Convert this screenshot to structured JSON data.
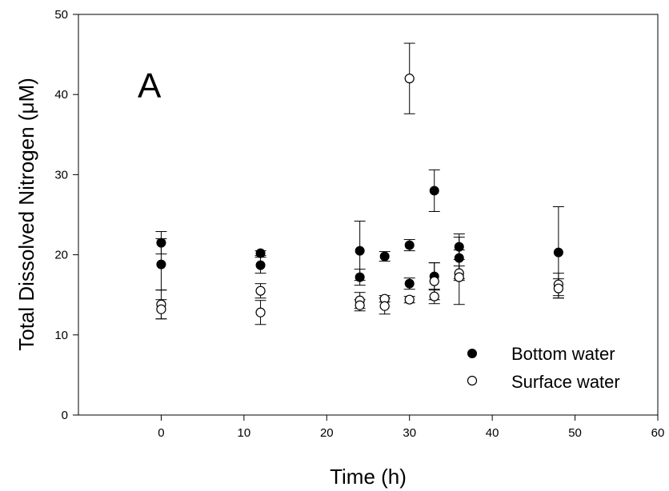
{
  "chart_data": {
    "type": "scatter",
    "panel_label": "A",
    "xlabel": "Time (h)",
    "ylabel": "Total Dissolved Nitrogen (μM)",
    "xlim": [
      -10,
      60
    ],
    "ylim": [
      0,
      50
    ],
    "xticks": [
      0,
      10,
      20,
      30,
      40,
      50,
      60
    ],
    "yticks": [
      0,
      10,
      20,
      30,
      40,
      50
    ],
    "grid": false,
    "legend_position": "bottom-right",
    "series": [
      {
        "name": "Bottom water",
        "marker": "filled-circle",
        "color": "#000000",
        "points": [
          {
            "x": 0,
            "y": 21.5,
            "err": 1.4
          },
          {
            "x": 0,
            "y": 18.8,
            "err": 3.2
          },
          {
            "x": 12,
            "y": 20.2,
            "err": 0.3
          },
          {
            "x": 12,
            "y": 18.7,
            "err": 1.0
          },
          {
            "x": 24,
            "y": 20.5,
            "err": 3.7
          },
          {
            "x": 24,
            "y": 17.2,
            "err": 1.0
          },
          {
            "x": 27,
            "y": 19.8,
            "err": 0.6
          },
          {
            "x": 30,
            "y": 21.2,
            "err": 0.7
          },
          {
            "x": 30,
            "y": 16.4,
            "err": 0.7
          },
          {
            "x": 33,
            "y": 28.0,
            "err": 2.6
          },
          {
            "x": 33,
            "y": 17.3,
            "err": 1.7
          },
          {
            "x": 36,
            "y": 21.0,
            "err": 1.6
          },
          {
            "x": 36,
            "y": 19.6,
            "err": 2.6
          },
          {
            "x": 48,
            "y": 20.3,
            "err": 5.7
          }
        ]
      },
      {
        "name": "Surface water",
        "marker": "open-circle",
        "color": "#000000",
        "points": [
          {
            "x": 0,
            "y": 13.8,
            "err": 1.8
          },
          {
            "x": 0,
            "y": 13.2,
            "err": 1.2
          },
          {
            "x": 12,
            "y": 15.5,
            "err": 0.9
          },
          {
            "x": 12,
            "y": 12.8,
            "err": 1.5
          },
          {
            "x": 24,
            "y": 14.3,
            "err": 1.0
          },
          {
            "x": 24,
            "y": 13.7,
            "err": 0.7
          },
          {
            "x": 27,
            "y": 14.5,
            "err": 0.4
          },
          {
            "x": 27,
            "y": 13.6,
            "err": 1.0
          },
          {
            "x": 30,
            "y": 42.0,
            "err": 4.4
          },
          {
            "x": 30,
            "y": 14.4,
            "err": 0.4
          },
          {
            "x": 33,
            "y": 16.7,
            "err": 2.3
          },
          {
            "x": 33,
            "y": 14.8,
            "err": 0.9
          },
          {
            "x": 36,
            "y": 17.7,
            "err": 0.9
          },
          {
            "x": 36,
            "y": 17.2,
            "err": 3.4
          },
          {
            "x": 48,
            "y": 16.3,
            "err": 1.4
          },
          {
            "x": 48,
            "y": 15.8,
            "err": 1.2
          }
        ]
      }
    ]
  }
}
